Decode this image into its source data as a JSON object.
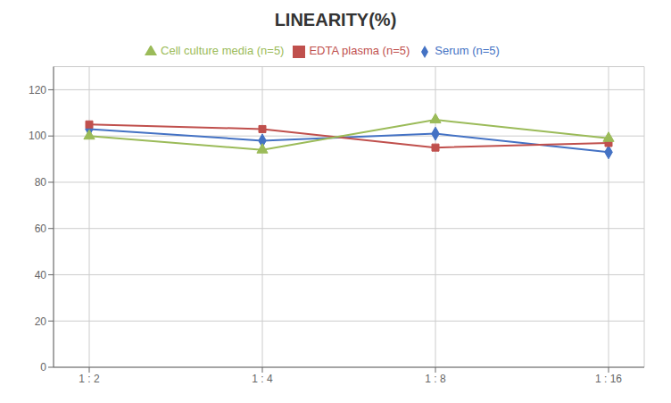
{
  "chart_data": {
    "type": "line",
    "title": "LINEARITY(%)",
    "categories": [
      "1 : 2",
      "1 : 4",
      "1 : 8",
      "1 : 16"
    ],
    "series": [
      {
        "name": "Serum (n=5)",
        "color": "#4472c4",
        "marker": "diamond",
        "values": [
          103,
          98,
          101,
          93
        ]
      },
      {
        "name": "EDTA plasma (n=5)",
        "color": "#c0504d",
        "marker": "square",
        "values": [
          105,
          103,
          95,
          97
        ]
      },
      {
        "name": "Cell culture media (n=5)",
        "color": "#9bbb59",
        "marker": "triangle",
        "values": [
          100,
          94,
          107,
          99
        ]
      }
    ],
    "ylim": [
      0,
      130
    ],
    "yticks": [
      0,
      20,
      40,
      60,
      80,
      100,
      120
    ],
    "grid": true,
    "legend": "top"
  }
}
